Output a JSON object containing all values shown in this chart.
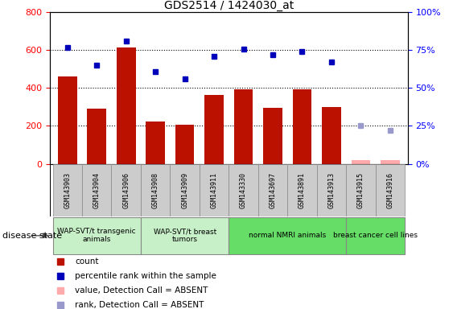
{
  "title": "GDS2514 / 1424030_at",
  "samples": [
    "GSM143903",
    "GSM143904",
    "GSM143906",
    "GSM143908",
    "GSM143909",
    "GSM143911",
    "GSM143330",
    "GSM143697",
    "GSM143891",
    "GSM143913",
    "GSM143915",
    "GSM143916"
  ],
  "counts": [
    460,
    290,
    615,
    225,
    205,
    365,
    395,
    295,
    395,
    300,
    20,
    20
  ],
  "percentile_ranks_right": [
    77,
    65,
    81,
    61,
    56,
    71,
    76,
    72,
    74,
    67,
    null,
    null
  ],
  "absent_count_vals": [
    null,
    null,
    null,
    null,
    null,
    null,
    null,
    null,
    null,
    null,
    20,
    20
  ],
  "absent_rank_vals": [
    null,
    null,
    null,
    null,
    null,
    null,
    null,
    null,
    null,
    null,
    25,
    22
  ],
  "is_absent": [
    false,
    false,
    false,
    false,
    false,
    false,
    false,
    false,
    false,
    false,
    true,
    true
  ],
  "groups": [
    {
      "label": "WAP-SVT/t transgenic\nanimals",
      "indices": [
        0,
        1,
        2
      ],
      "color": "#c8f0c8"
    },
    {
      "label": "WAP-SVT/t breast\ntumors",
      "indices": [
        3,
        4,
        5
      ],
      "color": "#c8f0c8"
    },
    {
      "label": "normal NMRI animals",
      "indices": [
        6,
        7,
        8,
        9
      ],
      "color": "#66dd66"
    },
    {
      "label": "breast cancer cell lines",
      "indices": [
        10,
        11
      ],
      "color": "#66dd66"
    }
  ],
  "bar_color_present": "#bb1100",
  "bar_color_absent": "#ffaaaa",
  "dot_color_present": "#0000bb",
  "dot_color_absent": "#9999cc",
  "ylim_left": [
    0,
    800
  ],
  "ylim_right": [
    0,
    100
  ],
  "yticks_left": [
    0,
    200,
    400,
    600,
    800
  ],
  "yticks_right": [
    0,
    25,
    50,
    75,
    100
  ],
  "sample_box_color": "#cccccc",
  "disease_state_label": "disease state"
}
